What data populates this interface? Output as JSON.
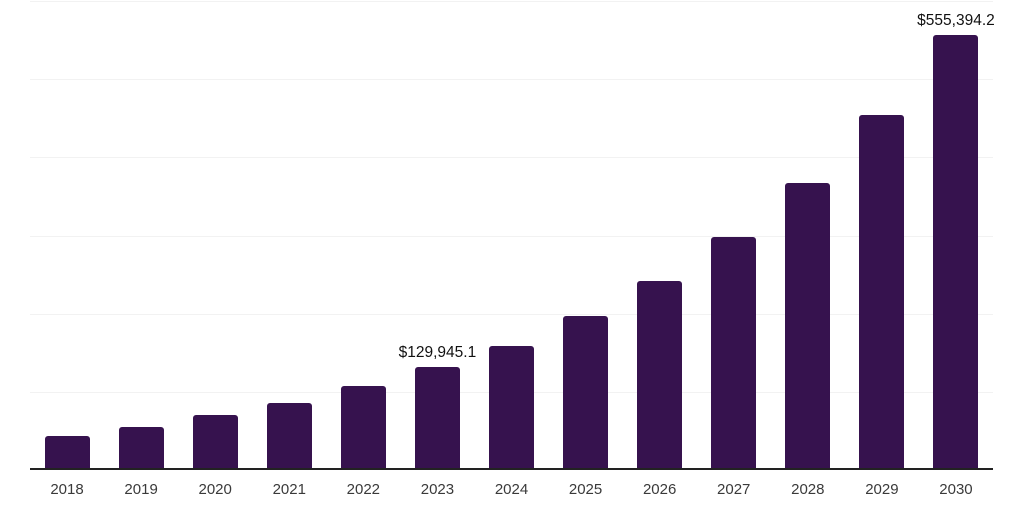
{
  "chart_data": {
    "type": "bar",
    "title": "",
    "xlabel": "",
    "ylabel": "",
    "categories": [
      "2018",
      "2019",
      "2020",
      "2021",
      "2022",
      "2023",
      "2024",
      "2025",
      "2026",
      "2027",
      "2028",
      "2029",
      "2030"
    ],
    "values": [
      42300,
      53800,
      69200,
      84600,
      106000,
      129945.1,
      158000,
      195500,
      240000,
      297000,
      366500,
      452500,
      555394.2
    ],
    "data_labels": {
      "2023": "$129,945.1",
      "2030": "$555,394.2"
    },
    "ylim": [
      0,
      600000
    ],
    "gridline_step": 100000,
    "grid": true,
    "y_axis_labels_visible": false,
    "legend": "none"
  },
  "styles": {
    "bar_color": "#36124E",
    "axis_line_color": "#222222",
    "gridline_color": "#f2f2f2",
    "tick_label_color": "#3a3a3a",
    "data_label_color": "#111111",
    "background_color": "#ffffff"
  }
}
